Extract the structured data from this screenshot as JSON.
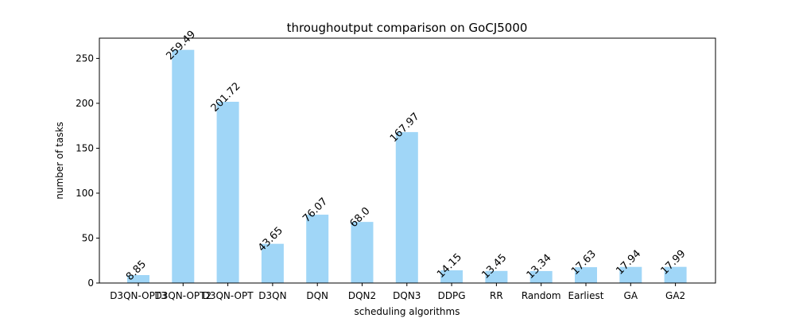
{
  "chart_data": {
    "type": "bar",
    "title": "throughoutput comparison on GoCJ5000",
    "xlabel": "scheduling algorithms",
    "ylabel": "number of tasks",
    "categories": [
      "D3QN-OPT3",
      "D3QN-OPT2",
      "D3QN-OPT",
      "D3QN",
      "DQN",
      "DQN2",
      "DQN3",
      "DDPG",
      "RR",
      "Random",
      "Earliest",
      "GA",
      "GA2"
    ],
    "values": [
      8.85,
      259.49,
      201.72,
      43.65,
      76.07,
      68.0,
      167.97,
      14.15,
      13.45,
      13.34,
      17.63,
      17.94,
      17.99
    ],
    "value_labels": [
      "8.85",
      "259.49",
      "201.72",
      "43.65",
      "76.07",
      "68.0",
      "167.97",
      "14.15",
      "13.45",
      "13.34",
      "17.63",
      "17.94",
      "17.99"
    ],
    "ylim": [
      0,
      272.5
    ],
    "yticks": [
      0,
      50,
      100,
      150,
      200,
      250
    ],
    "bar_color": "#a0d6f7",
    "grid": false,
    "legend": "none"
  }
}
